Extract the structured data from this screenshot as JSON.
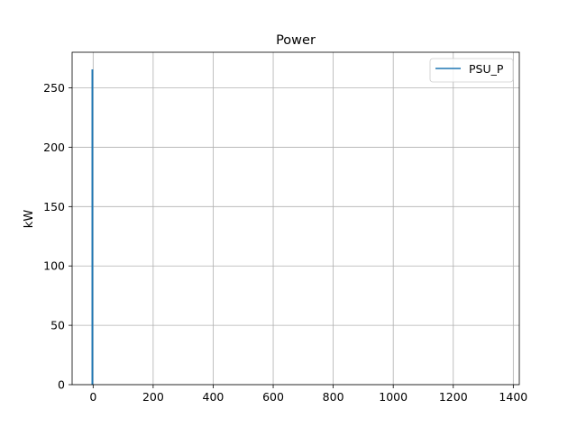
{
  "chart_data": {
    "type": "line",
    "title": "Power",
    "xlabel": "",
    "ylabel": "kW",
    "xlim": [
      -70,
      1420
    ],
    "ylim": [
      0,
      280
    ],
    "xticks": [
      0,
      200,
      400,
      600,
      800,
      1000,
      1200,
      1400
    ],
    "yticks": [
      0,
      50,
      100,
      150,
      200,
      250
    ],
    "grid": true,
    "legend": "upper right",
    "series": [
      {
        "name": "PSU_P",
        "color": "#1f77b4",
        "x": [
          -3,
          -3,
          -2,
          -2
        ],
        "y": [
          0,
          265,
          265,
          0
        ]
      }
    ]
  }
}
